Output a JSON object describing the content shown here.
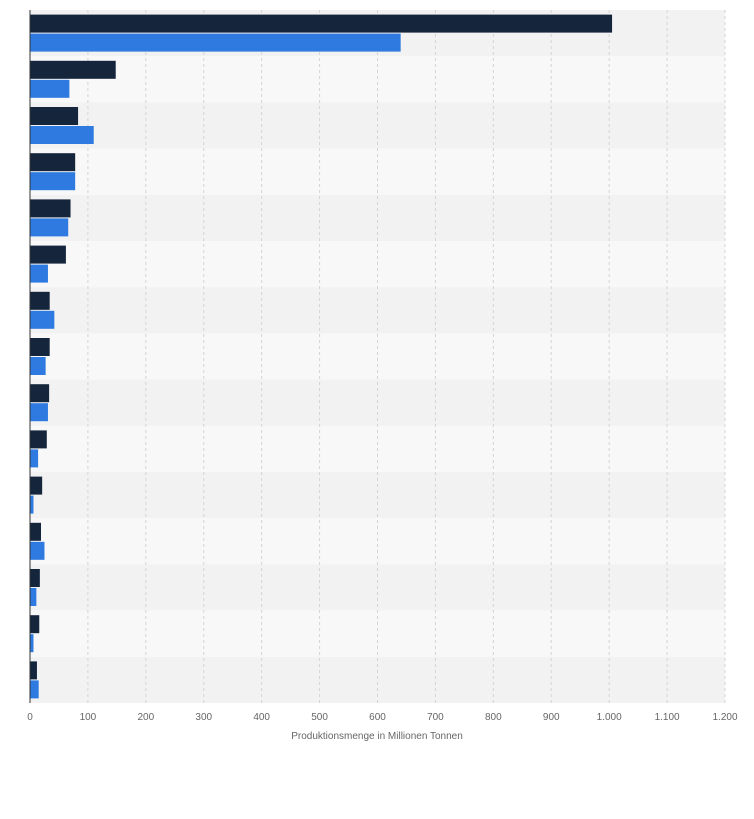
{
  "chart_data": {
    "type": "bar",
    "orientation": "horizontal",
    "categories": [
      "",
      "",
      "",
      "",
      "",
      "",
      "",
      "",
      "",
      "",
      "",
      "",
      "",
      "",
      ""
    ],
    "series": [
      {
        "color": "#14253c",
        "values": [
          1005,
          148,
          83,
          78,
          70,
          62,
          34,
          34,
          33,
          29,
          21,
          19,
          17,
          16,
          12
        ]
      },
      {
        "color": "#2f7ae0",
        "values": [
          640,
          68,
          110,
          78,
          66,
          31,
          42,
          27,
          31,
          14,
          6,
          25,
          11,
          6,
          15
        ]
      }
    ],
    "xlim": [
      0,
      1200
    ],
    "xticks": [
      {
        "value": 0,
        "label": "0"
      },
      {
        "value": 100,
        "label": "100"
      },
      {
        "value": 200,
        "label": "200"
      },
      {
        "value": 300,
        "label": "300"
      },
      {
        "value": 400,
        "label": "400"
      },
      {
        "value": 500,
        "label": "500"
      },
      {
        "value": 600,
        "label": "600"
      },
      {
        "value": 700,
        "label": "700"
      },
      {
        "value": 800,
        "label": "800"
      },
      {
        "value": 900,
        "label": "900"
      },
      {
        "value": 1000,
        "label": "1.000"
      },
      {
        "value": 1100,
        "label": "1.100"
      },
      {
        "value": 1200,
        "label": "1.200"
      }
    ],
    "xlabel": "Produktionsmenge in Millionen Tonnen",
    "grid": true,
    "legend": "none"
  }
}
